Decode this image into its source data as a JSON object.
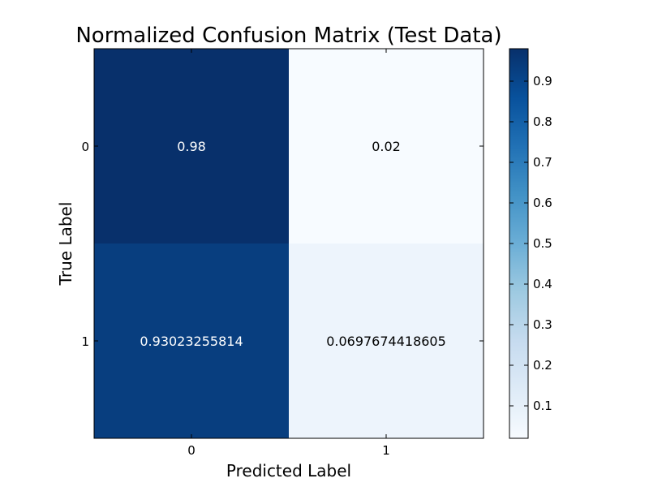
{
  "chart_data": {
    "type": "heatmap",
    "title": "Normalized Confusion Matrix (Test Data)",
    "xlabel": "Predicted Label",
    "ylabel": "True Label",
    "x_categories": [
      "0",
      "1"
    ],
    "y_categories": [
      "0",
      "1"
    ],
    "values": [
      [
        0.98,
        0.02
      ],
      [
        0.93023255814,
        0.0697674418605
      ]
    ],
    "cell_labels": [
      [
        "0.98",
        "0.02"
      ],
      [
        "0.93023255814",
        "0.0697674418605"
      ]
    ],
    "colormap": "Blues",
    "colormap_low": "#f7fbff",
    "colormap_high": "#08306b",
    "colorbar": {
      "range": [
        0.02,
        0.98
      ],
      "ticks": [
        "0.1",
        "0.2",
        "0.3",
        "0.4",
        "0.5",
        "0.6",
        "0.7",
        "0.8",
        "0.9"
      ],
      "placement": "right"
    },
    "grid": false
  }
}
